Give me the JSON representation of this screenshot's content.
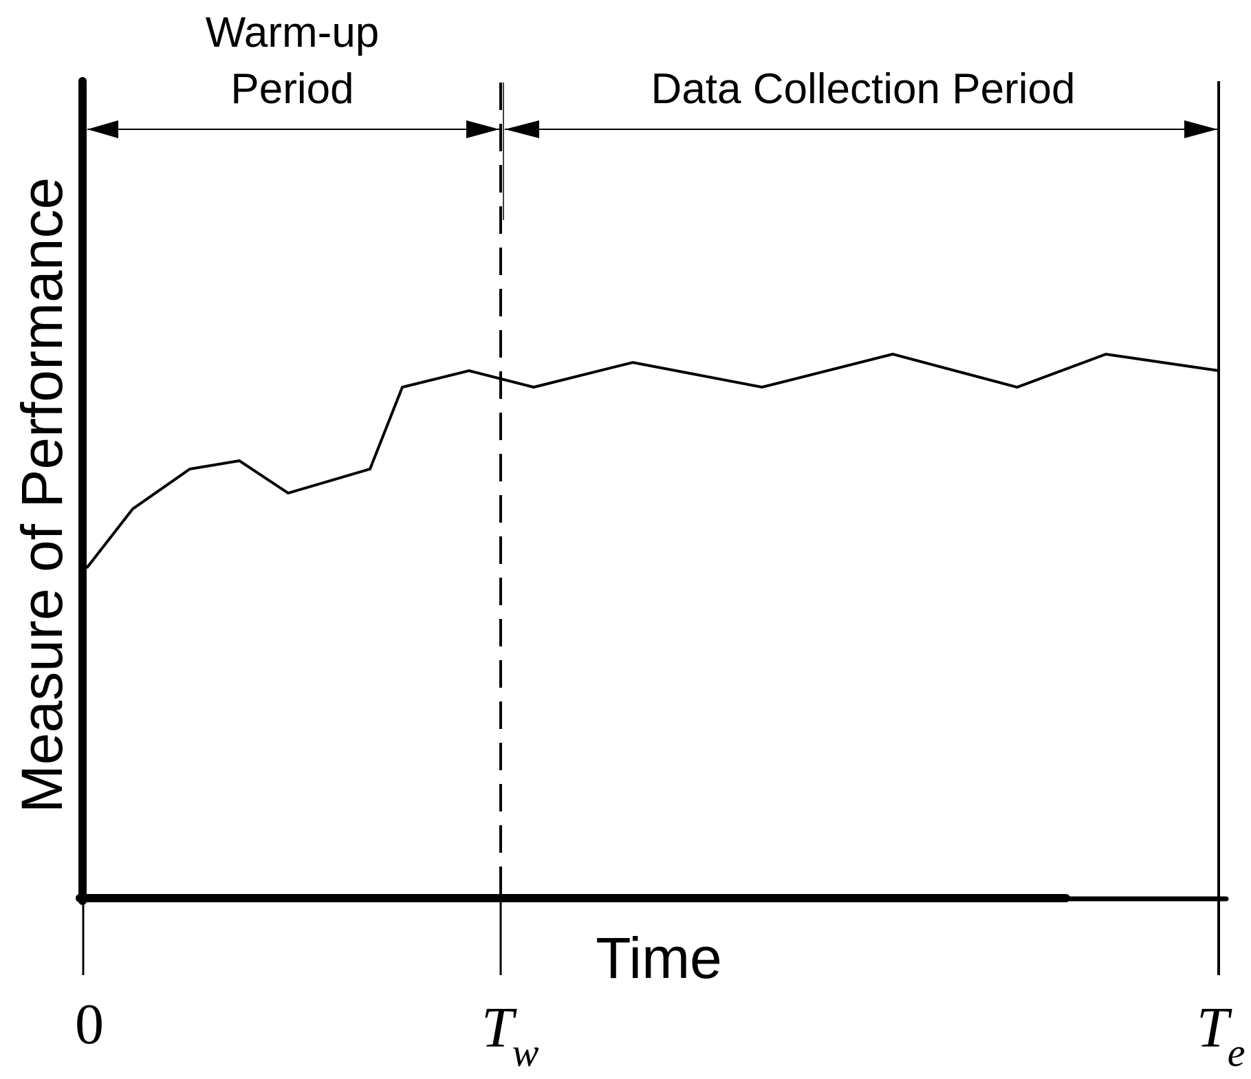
{
  "diagram": {
    "y_axis_label": "Measure of Performance",
    "x_axis_label": "Time",
    "warmup_label_line1": "Warm-up",
    "warmup_label_line2": "Period",
    "collection_label": "Data Collection Period",
    "tick_zero": "0",
    "tick_tw_main": "T",
    "tick_tw_sub": "w",
    "tick_te_main": "T",
    "tick_te_sub": "e"
  },
  "colors": {
    "stroke": "#000000",
    "background": "#ffffff"
  }
}
